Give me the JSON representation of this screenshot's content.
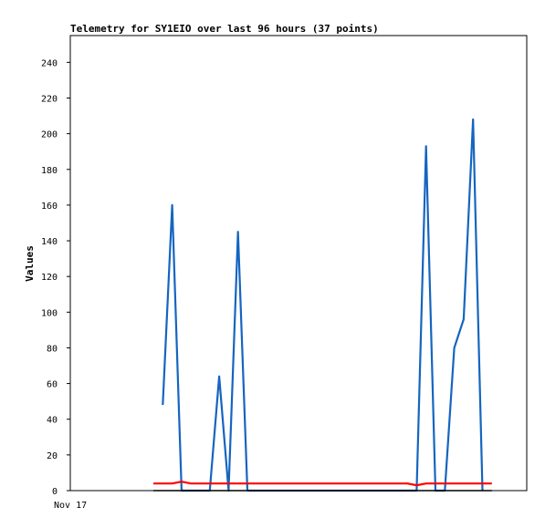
{
  "chart_data": {
    "type": "line",
    "title": "Telemetry for SY1EIO over last 96 hours (37 points)",
    "ylabel": "Values",
    "xlabel": "",
    "ylim": [
      0,
      255
    ],
    "yticks": [
      0,
      20,
      40,
      60,
      80,
      100,
      120,
      140,
      160,
      180,
      200,
      220,
      240
    ],
    "x_tick_labels": [
      "Nov 17"
    ],
    "grid": false,
    "legend": "none",
    "series": [
      {
        "color": "#1565c0",
        "points": [
          [
            1,
            48
          ],
          [
            2,
            160
          ],
          [
            3,
            0
          ],
          [
            6,
            0
          ],
          [
            7,
            64
          ],
          [
            8,
            0
          ],
          [
            9,
            145
          ],
          [
            10,
            0
          ],
          [
            28,
            0
          ],
          [
            29,
            193
          ],
          [
            30,
            0
          ],
          [
            31,
            0
          ],
          [
            32,
            80
          ],
          [
            33,
            96
          ],
          [
            34,
            208
          ],
          [
            35,
            0
          ]
        ]
      },
      {
        "color": "#ff0000",
        "points": [
          [
            0,
            4
          ],
          [
            2,
            4
          ],
          [
            3,
            5
          ],
          [
            4,
            4
          ],
          [
            27,
            4
          ],
          [
            28,
            3
          ],
          [
            29,
            4
          ],
          [
            36,
            4
          ]
        ]
      },
      {
        "color": "#000000",
        "points": [
          [
            0,
            0
          ],
          [
            36,
            0
          ]
        ]
      }
    ]
  }
}
